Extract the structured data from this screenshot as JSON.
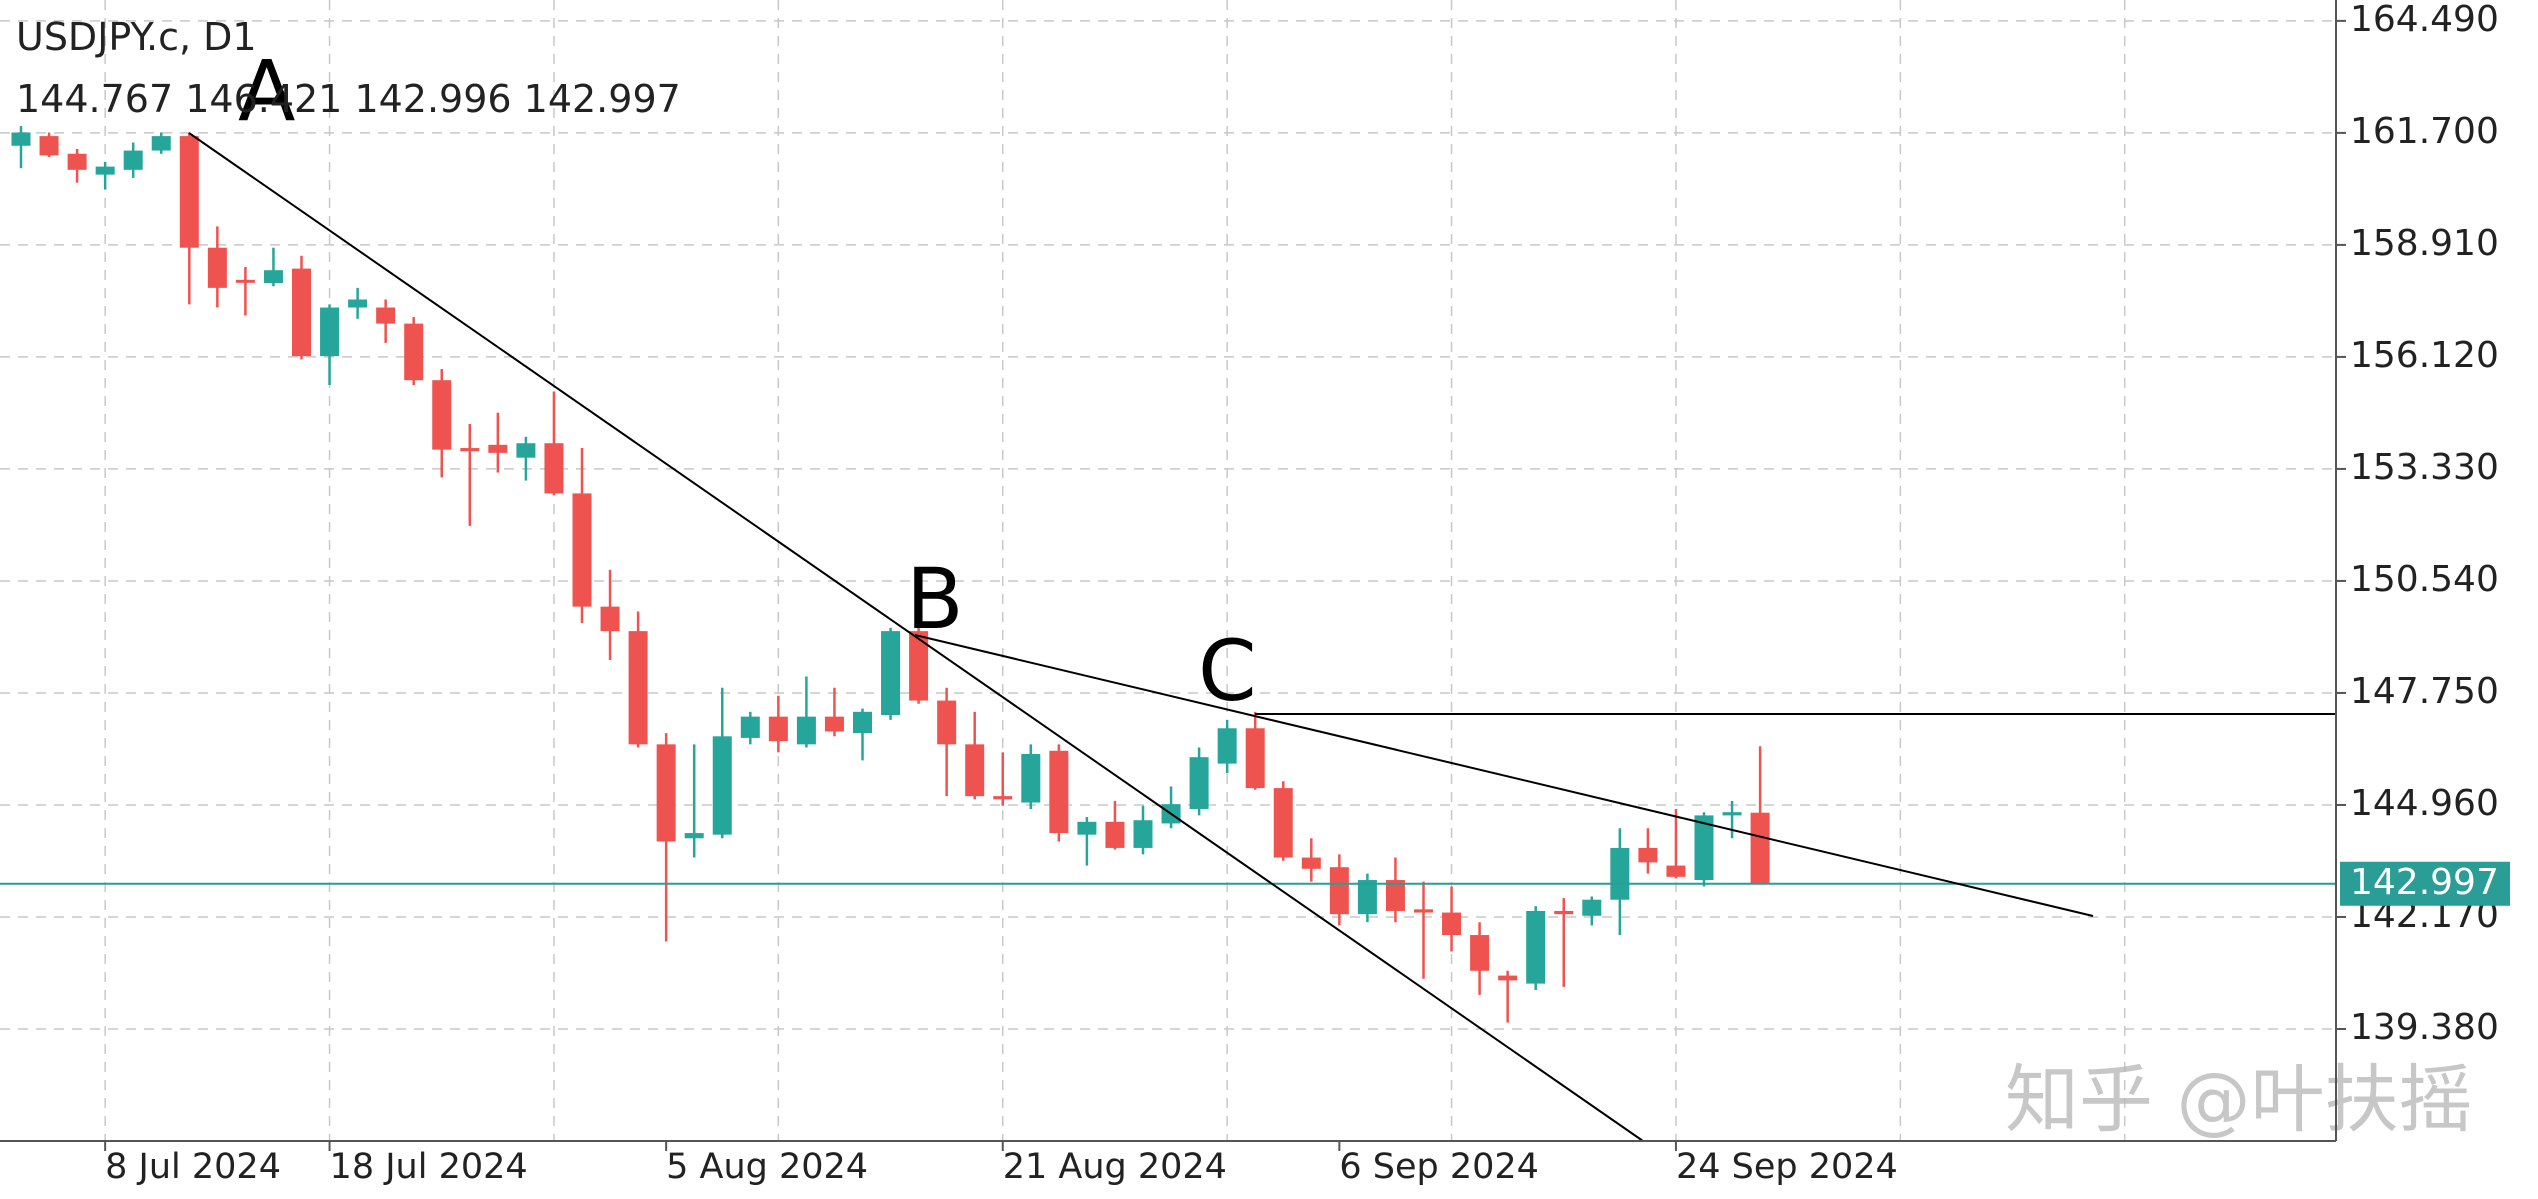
{
  "chart_data": {
    "type": "candlestick",
    "title": "USDJPY.c, D1",
    "subtitle": "144.767 146.421 142.996 142.997",
    "categories": [
      null,
      null,
      null,
      "8 Jul 2024",
      null,
      null,
      null,
      null,
      null,
      null,
      null,
      "18 Jul 2024",
      null,
      null,
      null,
      null,
      null,
      null,
      null,
      null,
      null,
      null,
      null,
      "5 Aug 2024",
      null,
      null,
      null,
      null,
      null,
      null,
      null,
      null,
      null,
      null,
      null,
      "21 Aug 2024",
      null,
      null,
      null,
      null,
      null,
      null,
      null,
      null,
      null,
      null,
      null,
      "6 Sep 2024",
      null,
      null,
      null,
      null,
      null,
      null,
      null,
      null,
      null,
      null,
      null,
      "24 Sep 2024",
      null,
      null,
      null
    ],
    "open": [
      161.38,
      161.62,
      161.18,
      160.66,
      160.78,
      161.26,
      161.62,
      158.84,
      158.04,
      157.96,
      158.32,
      156.14,
      157.35,
      157.35,
      156.95,
      155.54,
      153.85,
      153.93,
      153.61,
      153.97,
      152.72,
      149.9,
      149.29,
      146.47,
      144.13,
      144.22,
      146.63,
      147.16,
      146.47,
      147.16,
      146.75,
      147.2,
      149.29,
      147.56,
      146.47,
      145.18,
      145.02,
      146.31,
      144.22,
      144.54,
      143.89,
      144.5,
      144.86,
      145.99,
      146.87,
      145.38,
      143.65,
      143.41,
      142.24,
      143.09,
      142.36,
      142.28,
      141.72,
      140.71,
      140.51,
      142.32,
      142.2,
      142.6,
      143.89,
      143.45,
      143.09,
      144.7,
      144.767
    ],
    "high": [
      161.87,
      161.71,
      161.3,
      160.98,
      161.46,
      161.71,
      161.71,
      159.37,
      158.36,
      158.84,
      158.64,
      157.43,
      157.84,
      157.55,
      157.11,
      155.82,
      154.45,
      154.73,
      154.13,
      155.26,
      153.85,
      150.82,
      149.78,
      146.75,
      146.47,
      147.88,
      147.28,
      147.68,
      148.16,
      147.88,
      147.36,
      149.37,
      149.37,
      147.88,
      147.28,
      146.27,
      146.47,
      146.47,
      144.66,
      145.06,
      144.94,
      145.42,
      146.39,
      147.08,
      147.28,
      145.55,
      144.13,
      143.73,
      143.25,
      143.65,
      143.05,
      142.93,
      142.04,
      140.83,
      142.44,
      142.64,
      142.68,
      144.38,
      144.38,
      144.86,
      144.78,
      145.06,
      146.421
    ],
    "low": [
      160.82,
      161.1,
      160.46,
      160.29,
      160.58,
      161.18,
      157.43,
      157.35,
      157.15,
      157.88,
      156.06,
      155.42,
      157.07,
      156.47,
      155.42,
      153.12,
      151.91,
      153.24,
      153.04,
      152.68,
      149.49,
      148.57,
      146.39,
      141.56,
      143.65,
      144.13,
      146.47,
      146.27,
      146.39,
      146.67,
      146.07,
      147.08,
      147.48,
      145.18,
      145.1,
      144.94,
      144.86,
      144.05,
      143.45,
      143.85,
      143.73,
      144.38,
      144.7,
      145.75,
      145.34,
      143.57,
      143.05,
      141.96,
      142.04,
      142.04,
      140.63,
      141.31,
      140.23,
      139.54,
      140.35,
      140.43,
      141.96,
      141.72,
      143.25,
      143.13,
      142.93,
      144.13,
      142.996
    ],
    "close": [
      161.71,
      161.14,
      160.78,
      160.86,
      161.26,
      161.62,
      158.84,
      157.84,
      158.0,
      158.28,
      156.14,
      157.35,
      157.55,
      156.95,
      155.54,
      153.81,
      153.77,
      153.73,
      153.97,
      152.72,
      149.9,
      149.29,
      146.47,
      144.05,
      144.26,
      146.67,
      147.16,
      146.55,
      147.16,
      146.79,
      147.28,
      149.29,
      147.56,
      146.47,
      145.18,
      145.1,
      146.23,
      144.26,
      144.54,
      143.89,
      144.58,
      144.98,
      146.15,
      146.87,
      145.38,
      143.65,
      143.37,
      142.24,
      143.09,
      142.32,
      142.28,
      141.72,
      140.83,
      140.59,
      142.32,
      142.24,
      142.6,
      143.89,
      143.53,
      143.17,
      144.7,
      144.78,
      142.997
    ],
    "up_color": "#26a69a",
    "down_color": "#ef5350",
    "ylim": [
      136.59,
      165.01
    ],
    "yticks": [
      {
        "value": 164.49,
        "label": "164.490"
      },
      {
        "value": 161.7,
        "label": "161.700"
      },
      {
        "value": 158.91,
        "label": "158.910"
      },
      {
        "value": 156.12,
        "label": "156.120"
      },
      {
        "value": 153.33,
        "label": "153.330"
      },
      {
        "value": 150.54,
        "label": "150.540"
      },
      {
        "value": 147.75,
        "label": "147.750"
      },
      {
        "value": 144.96,
        "label": "144.960"
      },
      {
        "value": 142.17,
        "label": "142.170"
      },
      {
        "value": 139.38,
        "label": "139.380"
      }
    ],
    "grid": true,
    "current_price": {
      "value": 142.997,
      "label": "142.997"
    },
    "current_price_color": "#2a9d96",
    "annotations": [
      "A",
      "B",
      "C"
    ],
    "watermark": "知乎 @叶扶摇"
  }
}
